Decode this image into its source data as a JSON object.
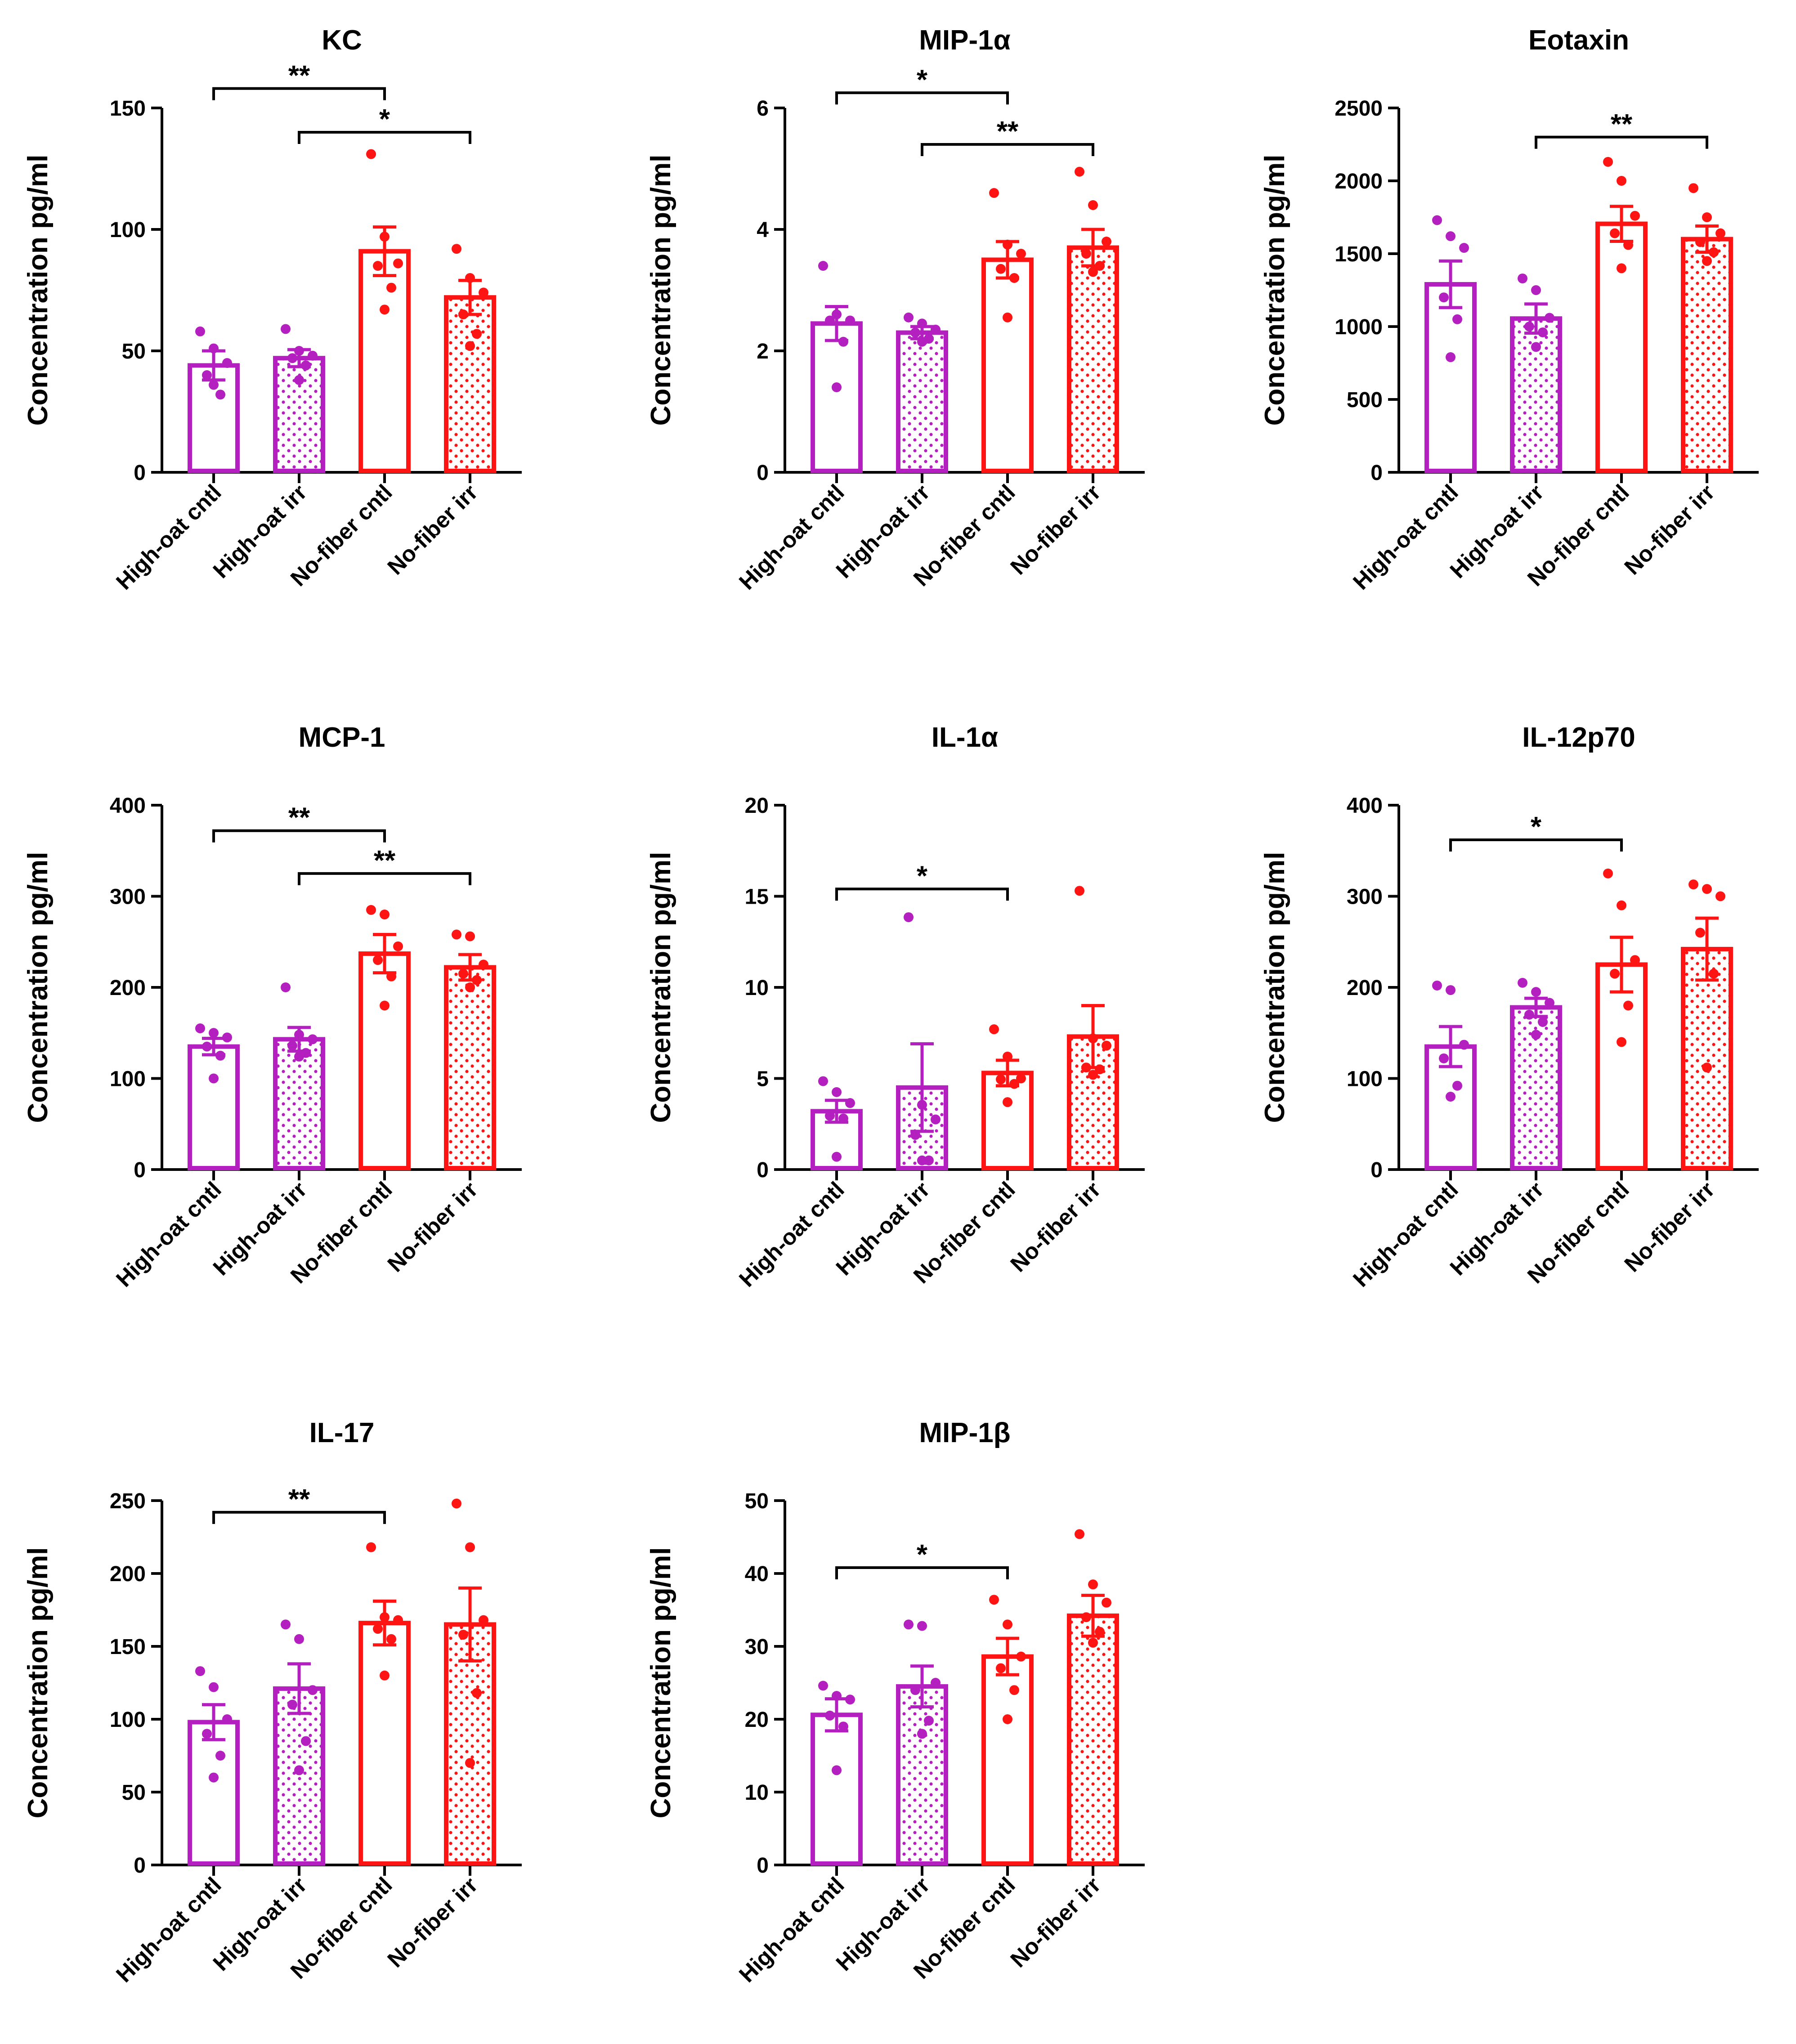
{
  "figure": {
    "categories": [
      "High-oat cntl",
      "High-oat irr",
      "No-fiber cntl",
      "No-fiber irr"
    ],
    "ylabel": "Concentration pg/ml",
    "colors": {
      "high_oat": "#b41fbf",
      "no_fiber": "#ff1414",
      "axis": "#000000"
    },
    "fill_pattern": {
      "High-oat cntl": "open",
      "High-oat irr": "dotted",
      "No-fiber cntl": "open",
      "No-fiber irr": "dotted"
    }
  },
  "chart_data": [
    {
      "type": "bar",
      "title": "KC",
      "ylabel": "Concentration pg/ml",
      "ylim": [
        0,
        150
      ],
      "yticks": [
        0,
        50,
        100,
        150
      ],
      "categories": [
        "High-oat cntl",
        "High-oat irr",
        "No-fiber cntl",
        "No-fiber irr"
      ],
      "values": [
        44,
        47,
        91,
        72
      ],
      "sem": [
        6,
        3.5,
        10,
        7
      ],
      "points": [
        [
          58,
          51,
          45,
          40,
          32,
          36
        ],
        [
          59,
          50,
          48,
          47,
          44,
          38
        ],
        [
          131,
          97,
          86,
          85,
          76,
          67
        ],
        [
          92,
          80,
          74,
          65,
          57,
          52
        ]
      ],
      "significance": [
        {
          "from": "High-oat cntl",
          "to": "No-fiber cntl",
          "label": "**",
          "y": 158
        },
        {
          "from": "High-oat irr",
          "to": "No-fiber irr",
          "label": "*",
          "y": 140
        }
      ]
    },
    {
      "type": "bar",
      "title": "MIP-1α",
      "ylabel": "Concentration pg/ml",
      "ylim": [
        0,
        6
      ],
      "yticks": [
        0,
        2,
        4,
        6
      ],
      "categories": [
        "High-oat cntl",
        "High-oat irr",
        "No-fiber cntl",
        "No-fiber irr"
      ],
      "values": [
        2.45,
        2.3,
        3.5,
        3.7
      ],
      "sem": [
        0.28,
        0.1,
        0.3,
        0.3
      ],
      "points": [
        [
          3.4,
          2.6,
          2.5,
          2.5,
          2.15,
          1.4
        ],
        [
          2.55,
          2.45,
          2.35,
          2.3,
          2.2,
          2.15
        ],
        [
          4.6,
          3.75,
          3.6,
          3.35,
          3.2,
          2.55
        ],
        [
          4.95,
          4.4,
          3.8,
          3.6,
          3.4,
          3.3
        ]
      ],
      "significance": [
        {
          "from": "High-oat cntl",
          "to": "No-fiber cntl",
          "label": "*",
          "y": 6.25
        },
        {
          "from": "High-oat irr",
          "to": "No-fiber irr",
          "label": "**",
          "y": 5.4
        }
      ]
    },
    {
      "type": "bar",
      "title": "Eotaxin",
      "ylabel": "Concentration pg/ml",
      "ylim": [
        0,
        2500
      ],
      "yticks": [
        0,
        500,
        1000,
        1500,
        2000,
        2500
      ],
      "categories": [
        "High-oat cntl",
        "High-oat irr",
        "No-fiber cntl",
        "No-fiber irr"
      ],
      "values": [
        1290,
        1055,
        1705,
        1600
      ],
      "sem": [
        160,
        100,
        120,
        90
      ],
      "points": [
        [
          1730,
          1620,
          1540,
          1200,
          1050,
          790
        ],
        [
          1330,
          1250,
          1060,
          1000,
          960,
          860
        ],
        [
          2130,
          2000,
          1760,
          1640,
          1560,
          1400
        ],
        [
          1950,
          1750,
          1640,
          1580,
          1510,
          1450
        ]
      ],
      "significance": [
        {
          "from": "High-oat irr",
          "to": "No-fiber irr",
          "label": "**",
          "y": 2300
        }
      ]
    },
    {
      "type": "bar",
      "title": "MCP-1",
      "ylabel": "Concentration pg/ml",
      "ylim": [
        0,
        400
      ],
      "yticks": [
        0,
        100,
        200,
        300,
        400
      ],
      "categories": [
        "High-oat cntl",
        "High-oat irr",
        "No-fiber cntl",
        "No-fiber irr"
      ],
      "values": [
        135,
        143,
        237,
        222
      ],
      "sem": [
        9,
        13,
        21,
        14
      ],
      "points": [
        [
          155,
          150,
          145,
          135,
          125,
          100
        ],
        [
          200,
          148,
          143,
          136,
          128,
          124
        ],
        [
          285,
          280,
          245,
          230,
          212,
          180
        ],
        [
          258,
          256,
          225,
          215,
          208,
          200
        ]
      ],
      "significance": [
        {
          "from": "High-oat cntl",
          "to": "No-fiber cntl",
          "label": "**",
          "y": 372
        },
        {
          "from": "High-oat irr",
          "to": "No-fiber irr",
          "label": "**",
          "y": 325
        }
      ]
    },
    {
      "type": "bar",
      "title": "IL-1α",
      "ylabel": "Concentration pg/ml",
      "ylim": [
        0,
        20
      ],
      "yticks": [
        0,
        5,
        10,
        15,
        20
      ],
      "categories": [
        "High-oat cntl",
        "High-oat irr",
        "No-fiber cntl",
        "No-fiber irr"
      ],
      "values": [
        3.2,
        4.5,
        5.3,
        7.3
      ],
      "sem": [
        0.6,
        2.4,
        0.7,
        1.7
      ],
      "points": [
        [
          4.85,
          4.25,
          3.65,
          2.95,
          2.8,
          0.7
        ],
        [
          13.85,
          3.55,
          2.75,
          1.9,
          0.5,
          0.5
        ],
        [
          7.7,
          6.2,
          5.0,
          4.95,
          4.7,
          3.7
        ],
        [
          15.3,
          7.2,
          6.8,
          5.6,
          5.5,
          5.2
        ]
      ],
      "significance": [
        {
          "from": "High-oat cntl",
          "to": "No-fiber cntl",
          "label": "*",
          "y": 15.4
        }
      ]
    },
    {
      "type": "bar",
      "title": "IL-12p70",
      "ylabel": "Concentration pg/ml",
      "ylim": [
        0,
        400
      ],
      "yticks": [
        0,
        100,
        200,
        300,
        400
      ],
      "categories": [
        "High-oat cntl",
        "High-oat irr",
        "No-fiber cntl",
        "No-fiber irr"
      ],
      "values": [
        135,
        178,
        225,
        242
      ],
      "sem": [
        22,
        10,
        30,
        34
      ],
      "points": [
        [
          202,
          197,
          137,
          122,
          92,
          80
        ],
        [
          205,
          195,
          183,
          170,
          162,
          148
        ],
        [
          325,
          290,
          230,
          215,
          180,
          140
        ],
        [
          313,
          308,
          300,
          260,
          215,
          112
        ]
      ],
      "significance": [
        {
          "from": "High-oat cntl",
          "to": "No-fiber cntl",
          "label": "*",
          "y": 362
        }
      ]
    },
    {
      "type": "bar",
      "title": "IL-17",
      "ylabel": "Concentration pg/ml",
      "ylim": [
        0,
        250
      ],
      "yticks": [
        0,
        50,
        100,
        150,
        200,
        250
      ],
      "categories": [
        "High-oat cntl",
        "High-oat irr",
        "No-fiber cntl",
        "No-fiber irr"
      ],
      "values": [
        98,
        121,
        166,
        165
      ],
      "sem": [
        12,
        17,
        15,
        25
      ],
      "points": [
        [
          133,
          122,
          100,
          90,
          75,
          60
        ],
        [
          165,
          155,
          120,
          110,
          85,
          65
        ],
        [
          218,
          170,
          168,
          162,
          155,
          130
        ],
        [
          248,
          218,
          168,
          158,
          118,
          70
        ]
      ],
      "significance": [
        {
          "from": "High-oat cntl",
          "to": "No-fiber cntl",
          "label": "**",
          "y": 242
        }
      ]
    },
    {
      "type": "bar",
      "title": "MIP-1β",
      "ylabel": "Concentration pg/ml",
      "ylim": [
        0,
        50
      ],
      "yticks": [
        0,
        10,
        20,
        30,
        40,
        50
      ],
      "categories": [
        "High-oat cntl",
        "High-oat irr",
        "No-fiber cntl",
        "No-fiber irr"
      ],
      "values": [
        20.6,
        24.5,
        28.6,
        34.2
      ],
      "sem": [
        2.2,
        2.8,
        2.5,
        2.8
      ],
      "points": [
        [
          24.6,
          23.2,
          22.7,
          20.5,
          19.0,
          13.0
        ],
        [
          33.0,
          32.8,
          25.0,
          24.0,
          19.8,
          18.0
        ],
        [
          36.4,
          33.0,
          28.6,
          27.0,
          24.0,
          20.0
        ],
        [
          45.4,
          38.5,
          36.0,
          34.0,
          32.0,
          30.5
        ]
      ],
      "significance": [
        {
          "from": "High-oat cntl",
          "to": "No-fiber cntl",
          "label": "*",
          "y": 40.8
        }
      ]
    }
  ]
}
